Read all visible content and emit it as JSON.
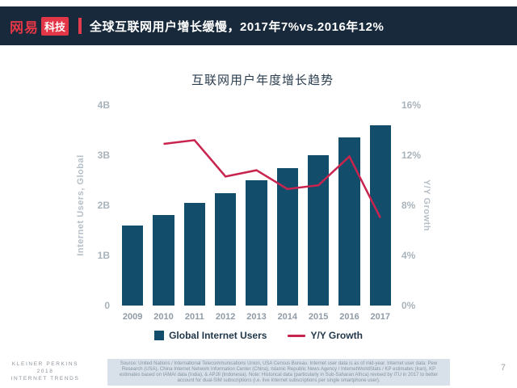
{
  "header": {
    "logo_primary": "网易",
    "logo_secondary": "科技",
    "headline": "全球互联网用户增长缓慢，2017年7%vs.2016年12%"
  },
  "chart_data": {
    "type": "bar+line",
    "title": "互联网用户年度增长趋势",
    "categories": [
      "2009",
      "2010",
      "2011",
      "2012",
      "2013",
      "2014",
      "2015",
      "2016",
      "2017"
    ],
    "series": [
      {
        "name": "Global Internet Users",
        "type": "bar",
        "axis": "left",
        "unit": "B",
        "color": "#124e6b",
        "values": [
          1.6,
          1.8,
          2.05,
          2.25,
          2.5,
          2.75,
          3.0,
          3.35,
          3.6
        ]
      },
      {
        "name": "Y/Y Growth",
        "type": "line",
        "axis": "right",
        "unit": "%",
        "color": "#c8244e",
        "values": [
          null,
          12.9,
          13.2,
          10.3,
          10.8,
          9.3,
          9.6,
          11.9,
          7.0
        ]
      }
    ],
    "left_axis": {
      "label": "Internet Users, Global",
      "range": [
        0,
        4
      ],
      "ticks": [
        "0",
        "1B",
        "2B",
        "3B",
        "4B"
      ]
    },
    "right_axis": {
      "label": "Y/Y Growth",
      "range": [
        0,
        16
      ],
      "ticks": [
        "0%",
        "4%",
        "8%",
        "12%",
        "16%"
      ]
    },
    "legend_position": "bottom",
    "grid": false
  },
  "footer": {
    "brand_line1": "KLEINER PERKINS",
    "brand_line2": "2018",
    "brand_line3": "INTERNET TRENDS",
    "source": "Source: United Nations / International Telecommunications Union, USA Census Bureau. Internet user data is as of mid-year. Internet user data: Pew Research (USA), China Internet Network Information Center (China), Islamic Republic News Agency / InternetWorldStats / KP estimates (Iran), KP estimates based on IAMAI data (India), & APJII (Indonesia). Note: Historical data (particularly in Sub-Saharan Africa) revised by ITU in 2017 to better account for dual-SIM subscriptions (i.e. live Internet subscriptions per single smartphone user).",
    "page_number": "7"
  }
}
